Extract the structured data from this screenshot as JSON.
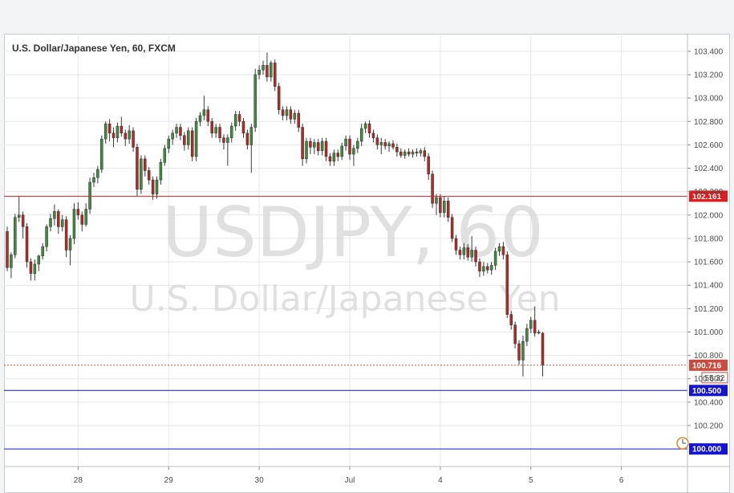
{
  "chart_data": {
    "type": "candlestick",
    "title": "U.S. Dollar/Japanese Yen, 60, FXCM",
    "watermark": {
      "symbol_line": "USDJPY, 60",
      "name_line": "U.S. Dollar/Japanese Yen"
    },
    "ylim": [
      99.85,
      103.55
    ],
    "y_ticks": [
      "103.400",
      "103.200",
      "103.000",
      "102.800",
      "102.600",
      "102.400",
      "102.200",
      "102.000",
      "101.800",
      "101.600",
      "101.400",
      "101.200",
      "101.000",
      "100.800",
      "100.600",
      "100.400",
      "100.200"
    ],
    "x_ticks": [
      {
        "label": "28",
        "index": 18
      },
      {
        "label": "29",
        "index": 41
      },
      {
        "label": "30",
        "index": 64
      },
      {
        "label": "Jul",
        "index": 87
      },
      {
        "label": "4",
        "index": 110
      },
      {
        "label": "5",
        "index": 133
      },
      {
        "label": "6",
        "index": 156
      }
    ],
    "horizontal_lines": [
      {
        "value": 102.161,
        "label": "102.161",
        "color": "#e11c1c",
        "style": "solid"
      },
      {
        "value": 100.5,
        "label": "100.500",
        "color": "#1414d2",
        "style": "solid"
      },
      {
        "value": 100.0,
        "label": "100.000",
        "color": "#1414d2",
        "style": "solid"
      }
    ],
    "last_price": {
      "value": 100.716,
      "label": "100.716",
      "countdown": "55:32",
      "color": "#c94a3f"
    },
    "grid": true,
    "colors": {
      "up": "#3d8c40",
      "down": "#b52a25",
      "grid": "#e6e6e6"
    },
    "candles": [
      [
        101.86,
        101.9,
        101.52,
        101.55
      ],
      [
        101.55,
        101.68,
        101.46,
        101.66
      ],
      [
        101.66,
        102.01,
        101.63,
        101.98
      ],
      [
        101.98,
        102.16,
        101.94,
        102.0
      ],
      [
        102.0,
        102.03,
        101.8,
        101.9
      ],
      [
        101.9,
        101.93,
        101.55,
        101.6
      ],
      [
        101.6,
        101.63,
        101.44,
        101.5
      ],
      [
        101.5,
        101.62,
        101.44,
        101.58
      ],
      [
        101.58,
        101.66,
        101.52,
        101.65
      ],
      [
        101.65,
        101.76,
        101.62,
        101.73
      ],
      [
        101.73,
        101.92,
        101.69,
        101.9
      ],
      [
        101.9,
        102.01,
        101.86,
        101.97
      ],
      [
        101.97,
        102.09,
        101.91,
        102.03
      ],
      [
        102.03,
        102.05,
        101.84,
        101.9
      ],
      [
        101.9,
        102.0,
        101.86,
        101.96
      ],
      [
        101.96,
        101.99,
        101.64,
        101.7
      ],
      [
        101.7,
        101.83,
        101.57,
        101.8
      ],
      [
        101.8,
        102.1,
        101.75,
        102.05
      ],
      [
        102.05,
        102.11,
        101.96,
        102.0
      ],
      [
        102.0,
        102.03,
        101.86,
        101.92
      ],
      [
        101.92,
        102.1,
        101.9,
        102.05
      ],
      [
        102.05,
        102.32,
        102.01,
        102.28
      ],
      [
        102.28,
        102.36,
        102.24,
        102.32
      ],
      [
        102.32,
        102.42,
        102.27,
        102.39
      ],
      [
        102.39,
        102.68,
        102.36,
        102.65
      ],
      [
        102.65,
        102.8,
        102.61,
        102.78
      ],
      [
        102.78,
        102.82,
        102.63,
        102.7
      ],
      [
        102.7,
        102.75,
        102.58,
        102.66
      ],
      [
        102.66,
        102.79,
        102.62,
        102.76
      ],
      [
        102.76,
        102.84,
        102.67,
        102.7
      ],
      [
        102.7,
        102.73,
        102.59,
        102.65
      ],
      [
        102.65,
        102.77,
        102.61,
        102.72
      ],
      [
        102.72,
        102.75,
        102.54,
        102.58
      ],
      [
        102.58,
        102.61,
        102.16,
        102.22
      ],
      [
        102.22,
        102.51,
        102.18,
        102.48
      ],
      [
        102.48,
        102.51,
        102.33,
        102.38
      ],
      [
        102.38,
        102.41,
        102.26,
        102.3
      ],
      [
        102.3,
        102.33,
        102.13,
        102.18
      ],
      [
        102.18,
        102.33,
        102.14,
        102.3
      ],
      [
        102.3,
        102.48,
        102.26,
        102.45
      ],
      [
        102.45,
        102.6,
        102.42,
        102.57
      ],
      [
        102.57,
        102.68,
        102.53,
        102.65
      ],
      [
        102.65,
        102.73,
        102.6,
        102.7
      ],
      [
        102.7,
        102.78,
        102.66,
        102.75
      ],
      [
        102.75,
        102.78,
        102.64,
        102.68
      ],
      [
        102.68,
        102.71,
        102.55,
        102.6
      ],
      [
        102.6,
        102.75,
        102.56,
        102.72
      ],
      [
        102.72,
        102.75,
        102.46,
        102.5
      ],
      [
        102.5,
        102.83,
        102.46,
        102.8
      ],
      [
        102.8,
        102.88,
        102.76,
        102.85
      ],
      [
        102.85,
        103.02,
        102.81,
        102.9
      ],
      [
        102.9,
        102.93,
        102.76,
        102.8
      ],
      [
        102.8,
        102.83,
        102.66,
        102.7
      ],
      [
        102.7,
        102.78,
        102.66,
        102.75
      ],
      [
        102.75,
        102.78,
        102.62,
        102.66
      ],
      [
        102.66,
        102.69,
        102.56,
        102.62
      ],
      [
        102.62,
        102.69,
        102.42,
        102.66
      ],
      [
        102.66,
        102.79,
        102.62,
        102.76
      ],
      [
        102.76,
        102.89,
        102.72,
        102.86
      ],
      [
        102.86,
        102.89,
        102.76,
        102.8
      ],
      [
        102.8,
        102.83,
        102.66,
        102.7
      ],
      [
        102.7,
        102.73,
        102.56,
        102.6
      ],
      [
        102.6,
        102.78,
        102.36,
        102.75
      ],
      [
        102.75,
        103.25,
        102.71,
        103.2
      ],
      [
        103.2,
        103.28,
        103.16,
        103.24
      ],
      [
        103.24,
        103.32,
        103.2,
        103.28
      ],
      [
        103.28,
        103.39,
        103.14,
        103.18
      ],
      [
        103.18,
        103.32,
        103.14,
        103.3
      ],
      [
        103.3,
        103.33,
        103.06,
        103.1
      ],
      [
        103.1,
        103.13,
        102.86,
        102.9
      ],
      [
        102.9,
        102.93,
        102.81,
        102.85
      ],
      [
        102.85,
        102.93,
        102.81,
        102.9
      ],
      [
        102.9,
        102.93,
        102.78,
        102.82
      ],
      [
        102.82,
        102.9,
        102.78,
        102.87
      ],
      [
        102.87,
        102.9,
        102.71,
        102.75
      ],
      [
        102.75,
        102.78,
        102.42,
        102.48
      ],
      [
        102.48,
        102.66,
        102.44,
        102.63
      ],
      [
        102.63,
        102.66,
        102.52,
        102.58
      ],
      [
        102.58,
        102.65,
        102.52,
        102.62
      ],
      [
        102.62,
        102.65,
        102.51,
        102.55
      ],
      [
        102.55,
        102.66,
        102.51,
        102.63
      ],
      [
        102.63,
        102.66,
        102.46,
        102.5
      ],
      [
        102.5,
        102.53,
        102.42,
        102.46
      ],
      [
        102.46,
        102.56,
        102.42,
        102.53
      ],
      [
        102.53,
        102.56,
        102.46,
        102.5
      ],
      [
        102.5,
        102.62,
        102.47,
        102.59
      ],
      [
        102.59,
        102.68,
        102.55,
        102.65
      ],
      [
        102.65,
        102.68,
        102.47,
        102.52
      ],
      [
        102.52,
        102.6,
        102.42,
        102.57
      ],
      [
        102.57,
        102.66,
        102.53,
        102.63
      ],
      [
        102.63,
        102.78,
        102.59,
        102.74
      ],
      [
        102.74,
        102.8,
        102.7,
        102.78
      ],
      [
        102.78,
        102.81,
        102.66,
        102.7
      ],
      [
        102.7,
        102.73,
        102.62,
        102.66
      ],
      [
        102.66,
        102.69,
        102.56,
        102.6
      ],
      [
        102.6,
        102.66,
        102.52,
        102.62
      ],
      [
        102.62,
        102.65,
        102.56,
        102.59
      ],
      [
        102.59,
        102.63,
        102.54,
        102.61
      ],
      [
        102.61,
        102.64,
        102.56,
        102.58
      ],
      [
        102.58,
        102.61,
        102.5,
        102.54
      ],
      [
        102.54,
        102.57,
        102.49,
        102.51
      ],
      [
        102.51,
        102.56,
        102.48,
        102.54
      ],
      [
        102.54,
        102.57,
        102.5,
        102.52
      ],
      [
        102.52,
        102.56,
        102.49,
        102.54
      ],
      [
        102.54,
        102.57,
        102.5,
        102.53
      ],
      [
        102.53,
        102.57,
        102.5,
        102.55
      ],
      [
        102.55,
        102.58,
        102.46,
        102.5
      ],
      [
        102.5,
        102.53,
        102.3,
        102.35
      ],
      [
        102.35,
        102.38,
        102.06,
        102.1
      ],
      [
        102.1,
        102.18,
        102.0,
        102.15
      ],
      [
        102.15,
        102.18,
        101.98,
        102.02
      ],
      [
        102.02,
        102.16,
        101.98,
        102.12
      ],
      [
        102.12,
        102.15,
        101.94,
        101.98
      ],
      [
        101.98,
        102.01,
        101.77,
        101.8
      ],
      [
        101.8,
        101.83,
        101.66,
        101.7
      ],
      [
        101.7,
        101.73,
        101.62,
        101.66
      ],
      [
        101.66,
        101.76,
        101.62,
        101.72
      ],
      [
        101.72,
        101.75,
        101.61,
        101.64
      ],
      [
        101.64,
        101.82,
        101.6,
        101.7
      ],
      [
        101.7,
        101.73,
        101.56,
        101.6
      ],
      [
        101.6,
        101.63,
        101.47,
        101.52
      ],
      [
        101.52,
        101.6,
        101.48,
        101.56
      ],
      [
        101.56,
        101.59,
        101.5,
        101.53
      ],
      [
        101.53,
        101.6,
        101.49,
        101.57
      ],
      [
        101.57,
        101.72,
        101.53,
        101.69
      ],
      [
        101.69,
        101.76,
        101.65,
        101.73
      ],
      [
        101.73,
        101.77,
        101.62,
        101.66
      ],
      [
        101.66,
        101.69,
        101.12,
        101.15
      ],
      [
        101.15,
        101.18,
        101.02,
        101.06
      ],
      [
        101.06,
        101.09,
        100.86,
        100.9
      ],
      [
        100.9,
        100.93,
        100.72,
        100.76
      ],
      [
        100.76,
        100.97,
        100.62,
        100.92
      ],
      [
        100.92,
        101.07,
        100.88,
        101.03
      ],
      [
        101.03,
        101.13,
        100.99,
        101.1
      ],
      [
        101.1,
        101.22,
        100.96,
        100.99
      ],
      [
        100.99,
        101.02,
        100.98,
        101.0
      ],
      [
        100.99,
        101.0,
        100.62,
        100.72
      ]
    ]
  }
}
